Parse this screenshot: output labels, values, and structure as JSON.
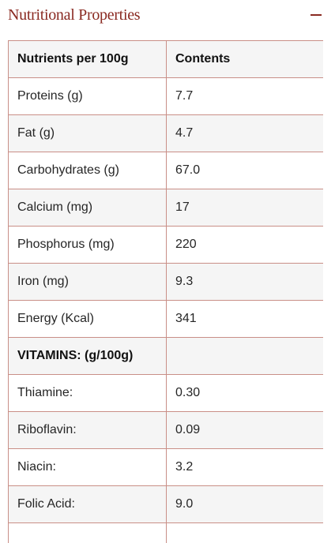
{
  "section": {
    "title": "Nutritional Properties",
    "toggle_icon": "minus-icon"
  },
  "table": {
    "headers": [
      "Nutrients per 100g",
      "Contents"
    ],
    "rows": [
      {
        "nutrient": "Proteins (g)",
        "content": "7.7"
      },
      {
        "nutrient": "Fat (g)",
        "content": "4.7"
      },
      {
        "nutrient": "Carbohydrates (g)",
        "content": "67.0"
      },
      {
        "nutrient": "Calcium (mg)",
        "content": "17"
      },
      {
        "nutrient": "Phosphorus (mg)",
        "content": "220"
      },
      {
        "nutrient": "Iron (mg)",
        "content": "9.3"
      },
      {
        "nutrient": "Energy (Kcal)",
        "content": "341"
      },
      {
        "nutrient": "VITAMINS: (g/100g)",
        "content": ""
      },
      {
        "nutrient": "Thiamine:",
        "content": "0.30"
      },
      {
        "nutrient": "Riboflavin:",
        "content": "0.09"
      },
      {
        "nutrient": "Niacin:",
        "content": "3.2"
      },
      {
        "nutrient": "Folic Acid:",
        "content": "9.0"
      },
      {
        "nutrient": "",
        "content": ""
      }
    ]
  },
  "colors": {
    "accent": "#8a2a22",
    "border": "#c98f87",
    "stripe": "#f5f5f5"
  }
}
